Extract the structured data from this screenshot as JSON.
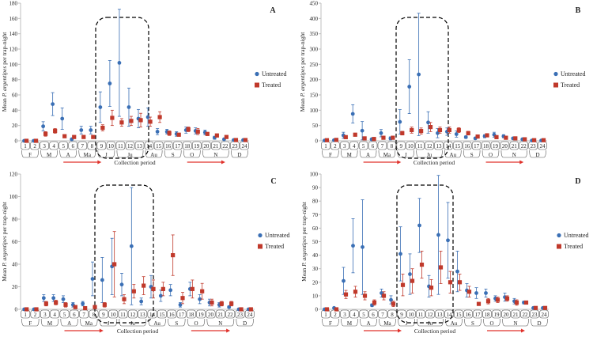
{
  "colors": {
    "untreated": "#3a6fb5",
    "treated": "#c0392b",
    "axis": "#bfbfbf",
    "arrow": "#e0312b",
    "box": "#000000"
  },
  "chart_data": [
    {
      "panel_label": "A",
      "type": "scatter",
      "ylabel_prefix": "Mean ",
      "ylabel_species": "P. argentipes",
      "ylabel_suffix": " per trap-night",
      "xlabel": "Collection period",
      "ylim": [
        0,
        180
      ],
      "yticks": [
        "0",
        "20",
        "40",
        "60",
        "80",
        "100",
        "120",
        "140",
        "160",
        "180"
      ],
      "x": [
        1,
        2,
        3,
        4,
        5,
        6,
        7,
        8,
        9,
        10,
        11,
        12,
        13,
        14,
        15,
        16,
        17,
        18,
        19,
        20,
        21,
        22,
        23,
        24
      ],
      "legend": [
        "Untreated",
        "Treated"
      ],
      "series": [
        {
          "name": "Untreated",
          "values": [
            0,
            0,
            19,
            48,
            29,
            2,
            14,
            14,
            44,
            75,
            102,
            44,
            29,
            31,
            12,
            12,
            9,
            14,
            13,
            11,
            4,
            2,
            1,
            1
          ],
          "err": [
            0,
            0,
            6,
            15,
            14,
            1,
            5,
            5,
            20,
            30,
            70,
            25,
            12,
            12,
            4,
            3,
            3,
            4,
            4,
            3,
            2,
            1,
            0,
            0
          ]
        },
        {
          "name": "Treated",
          "values": [
            0,
            0,
            9,
            13,
            6,
            5,
            5,
            5,
            17,
            30,
            24,
            26,
            27,
            25,
            31,
            10,
            8,
            15,
            12,
            9,
            7,
            5,
            1,
            1
          ],
          "err": [
            0,
            0,
            3,
            3,
            2,
            1,
            2,
            2,
            4,
            10,
            5,
            6,
            9,
            6,
            7,
            3,
            2,
            3,
            4,
            2,
            2,
            1,
            0,
            0
          ]
        }
      ],
      "months": [
        {
          "label": "F",
          "from": 1,
          "to": 2
        },
        {
          "label": "M",
          "from": 3,
          "to": 4
        },
        {
          "label": "A",
          "from": 5,
          "to": 6
        },
        {
          "label": "Ma",
          "from": 7,
          "to": 8
        },
        {
          "label": "J",
          "from": 9,
          "to": 10
        },
        {
          "label": "Ju",
          "from": 11,
          "to": 13
        },
        {
          "label": "Au",
          "from": 14,
          "to": 15
        },
        {
          "label": "S",
          "from": 16,
          "to": 17
        },
        {
          "label": "O",
          "from": 18,
          "to": 19
        },
        {
          "label": "N",
          "from": 20,
          "to": 22
        },
        {
          "label": "D",
          "from": 23,
          "to": 24
        }
      ]
    },
    {
      "panel_label": "B",
      "type": "scatter",
      "ylabel_prefix": "Mean ",
      "ylabel_species": "P. argentipes",
      "ylabel_suffix": " per trap-night",
      "xlabel": "Collection period",
      "ylim": [
        0,
        450
      ],
      "yticks": [
        "0",
        "50",
        "100",
        "150",
        "200",
        "250",
        "300",
        "350",
        "400",
        "450"
      ],
      "x": [
        1,
        2,
        3,
        4,
        5,
        6,
        7,
        8,
        9,
        10,
        11,
        12,
        13,
        14,
        15,
        16,
        17,
        18,
        19,
        20,
        21,
        22,
        23,
        24
      ],
      "legend": [
        "Untreated",
        "Treated"
      ],
      "series": [
        {
          "name": "Untreated",
          "values": [
            1,
            2,
            18,
            88,
            33,
            5,
            25,
            8,
            62,
            177,
            217,
            60,
            25,
            30,
            22,
            12,
            8,
            15,
            20,
            15,
            8,
            5,
            1,
            1
          ],
          "err": [
            0,
            0,
            10,
            30,
            30,
            3,
            12,
            5,
            40,
            88,
            200,
            35,
            15,
            12,
            10,
            4,
            3,
            5,
            8,
            5,
            3,
            2,
            0,
            0
          ]
        },
        {
          "name": "Treated",
          "values": [
            2,
            3,
            12,
            20,
            8,
            6,
            10,
            10,
            25,
            35,
            32,
            45,
            35,
            35,
            35,
            25,
            14,
            18,
            12,
            10,
            8,
            5,
            2,
            2
          ],
          "err": [
            0,
            1,
            3,
            5,
            3,
            2,
            3,
            3,
            6,
            10,
            10,
            15,
            10,
            10,
            8,
            6,
            4,
            4,
            3,
            3,
            2,
            1,
            0,
            0
          ]
        }
      ],
      "months": [
        {
          "label": "F",
          "from": 1,
          "to": 2
        },
        {
          "label": "M",
          "from": 3,
          "to": 4
        },
        {
          "label": "A",
          "from": 5,
          "to": 6
        },
        {
          "label": "Ma",
          "from": 7,
          "to": 8
        },
        {
          "label": "J",
          "from": 9,
          "to": 10
        },
        {
          "label": "Ju",
          "from": 11,
          "to": 13
        },
        {
          "label": "Au",
          "from": 14,
          "to": 15
        },
        {
          "label": "S",
          "from": 16,
          "to": 17
        },
        {
          "label": "O",
          "from": 18,
          "to": 19
        },
        {
          "label": "N",
          "from": 20,
          "to": 22
        },
        {
          "label": "D",
          "from": 23,
          "to": 24
        }
      ]
    },
    {
      "panel_label": "C",
      "type": "scatter",
      "ylabel_prefix": "Mean ",
      "ylabel_species": "P. argentipes",
      "ylabel_suffix": " per trap-night",
      "xlabel": "Collection period",
      "ylim": [
        0,
        120
      ],
      "yticks": [
        "0",
        "20",
        "40",
        "60",
        "80",
        "100",
        "120"
      ],
      "x": [
        1,
        2,
        3,
        4,
        5,
        6,
        7,
        8,
        9,
        10,
        11,
        12,
        13,
        14,
        15,
        16,
        17,
        18,
        19,
        20,
        21,
        22,
        23,
        24
      ],
      "legend": [
        "Untreated",
        "Treated"
      ],
      "series": [
        {
          "name": "Untreated",
          "values": [
            0,
            0,
            10,
            10,
            9,
            4,
            5,
            27,
            26,
            38,
            22,
            56,
            7,
            20,
            12,
            17,
            4,
            18,
            9,
            6,
            4,
            2,
            0,
            0
          ],
          "err": [
            0,
            0,
            3,
            3,
            3,
            2,
            2,
            15,
            20,
            25,
            10,
            52,
            3,
            10,
            5,
            5,
            2,
            6,
            4,
            3,
            2,
            1,
            0,
            0
          ]
        },
        {
          "name": "Treated",
          "values": [
            0,
            0,
            5,
            6,
            4,
            2,
            1,
            2,
            4,
            40,
            9,
            16,
            21,
            18,
            18,
            48,
            10,
            18,
            16,
            6,
            5,
            5,
            0,
            0
          ],
          "err": [
            0,
            0,
            2,
            2,
            2,
            1,
            1,
            1,
            2,
            29,
            4,
            6,
            8,
            8,
            6,
            18,
            5,
            8,
            7,
            3,
            2,
            2,
            0,
            0
          ]
        }
      ],
      "months": [
        {
          "label": "F",
          "from": 1,
          "to": 2
        },
        {
          "label": "M",
          "from": 3,
          "to": 4
        },
        {
          "label": "A",
          "from": 5,
          "to": 6
        },
        {
          "label": "Ma",
          "from": 7,
          "to": 8
        },
        {
          "label": "J",
          "from": 9,
          "to": 10
        },
        {
          "label": "Ju",
          "from": 11,
          "to": 13
        },
        {
          "label": "Au",
          "from": 14,
          "to": 15
        },
        {
          "label": "S",
          "from": 16,
          "to": 17
        },
        {
          "label": "O",
          "from": 18,
          "to": 19
        },
        {
          "label": "N",
          "from": 20,
          "to": 22
        },
        {
          "label": "D",
          "from": 23,
          "to": 24
        }
      ]
    },
    {
      "panel_label": "D",
      "type": "scatter",
      "ylabel_prefix": "Mean ",
      "ylabel_species": "P. argentipes",
      "ylabel_suffix": " per trap-night",
      "xlabel": "Collection period",
      "ylim": [
        0,
        100
      ],
      "yticks": [
        "0",
        "10",
        "20",
        "30",
        "40",
        "50",
        "60",
        "70",
        "80",
        "90",
        "100"
      ],
      "x": [
        1,
        2,
        3,
        4,
        5,
        6,
        7,
        8,
        9,
        10,
        11,
        12,
        13,
        14,
        15,
        16,
        17,
        18,
        19,
        20,
        21,
        22,
        23,
        24
      ],
      "legend": [
        "Untreated",
        "Treated"
      ],
      "series": [
        {
          "name": "Untreated",
          "values": [
            0,
            1,
            21,
            47,
            46,
            3,
            12,
            7,
            41,
            26,
            62,
            17,
            55,
            51,
            28,
            14,
            12,
            12,
            8,
            9,
            6,
            5,
            1,
            1
          ],
          "err": [
            0,
            0,
            10,
            20,
            35,
            1,
            3,
            3,
            20,
            15,
            20,
            8,
            44,
            28,
            15,
            5,
            4,
            3,
            2,
            3,
            2,
            1,
            0,
            0
          ]
        },
        {
          "name": "Treated",
          "values": [
            0,
            0,
            11,
            13,
            10,
            5,
            10,
            4,
            18,
            21,
            33,
            16,
            31,
            20,
            20,
            13,
            4,
            6,
            7,
            8,
            5,
            5,
            1,
            1
          ],
          "err": [
            0,
            0,
            3,
            4,
            3,
            2,
            3,
            2,
            8,
            9,
            10,
            6,
            12,
            8,
            6,
            4,
            1,
            2,
            2,
            2,
            2,
            1,
            0,
            0
          ]
        }
      ],
      "months": [
        {
          "label": "F",
          "from": 1,
          "to": 2
        },
        {
          "label": "M",
          "from": 3,
          "to": 4
        },
        {
          "label": "A",
          "from": 5,
          "to": 6
        },
        {
          "label": "Ma",
          "from": 7,
          "to": 8
        },
        {
          "label": "J",
          "from": 9,
          "to": 10
        },
        {
          "label": "Ju",
          "from": 11,
          "to": 13
        },
        {
          "label": "Au",
          "from": 14,
          "to": 15
        },
        {
          "label": "S",
          "from": 16,
          "to": 17
        },
        {
          "label": "O",
          "from": 18,
          "to": 19
        },
        {
          "label": "N",
          "from": 20,
          "to": 22
        },
        {
          "label": "D",
          "from": 23,
          "to": 24
        }
      ]
    }
  ]
}
